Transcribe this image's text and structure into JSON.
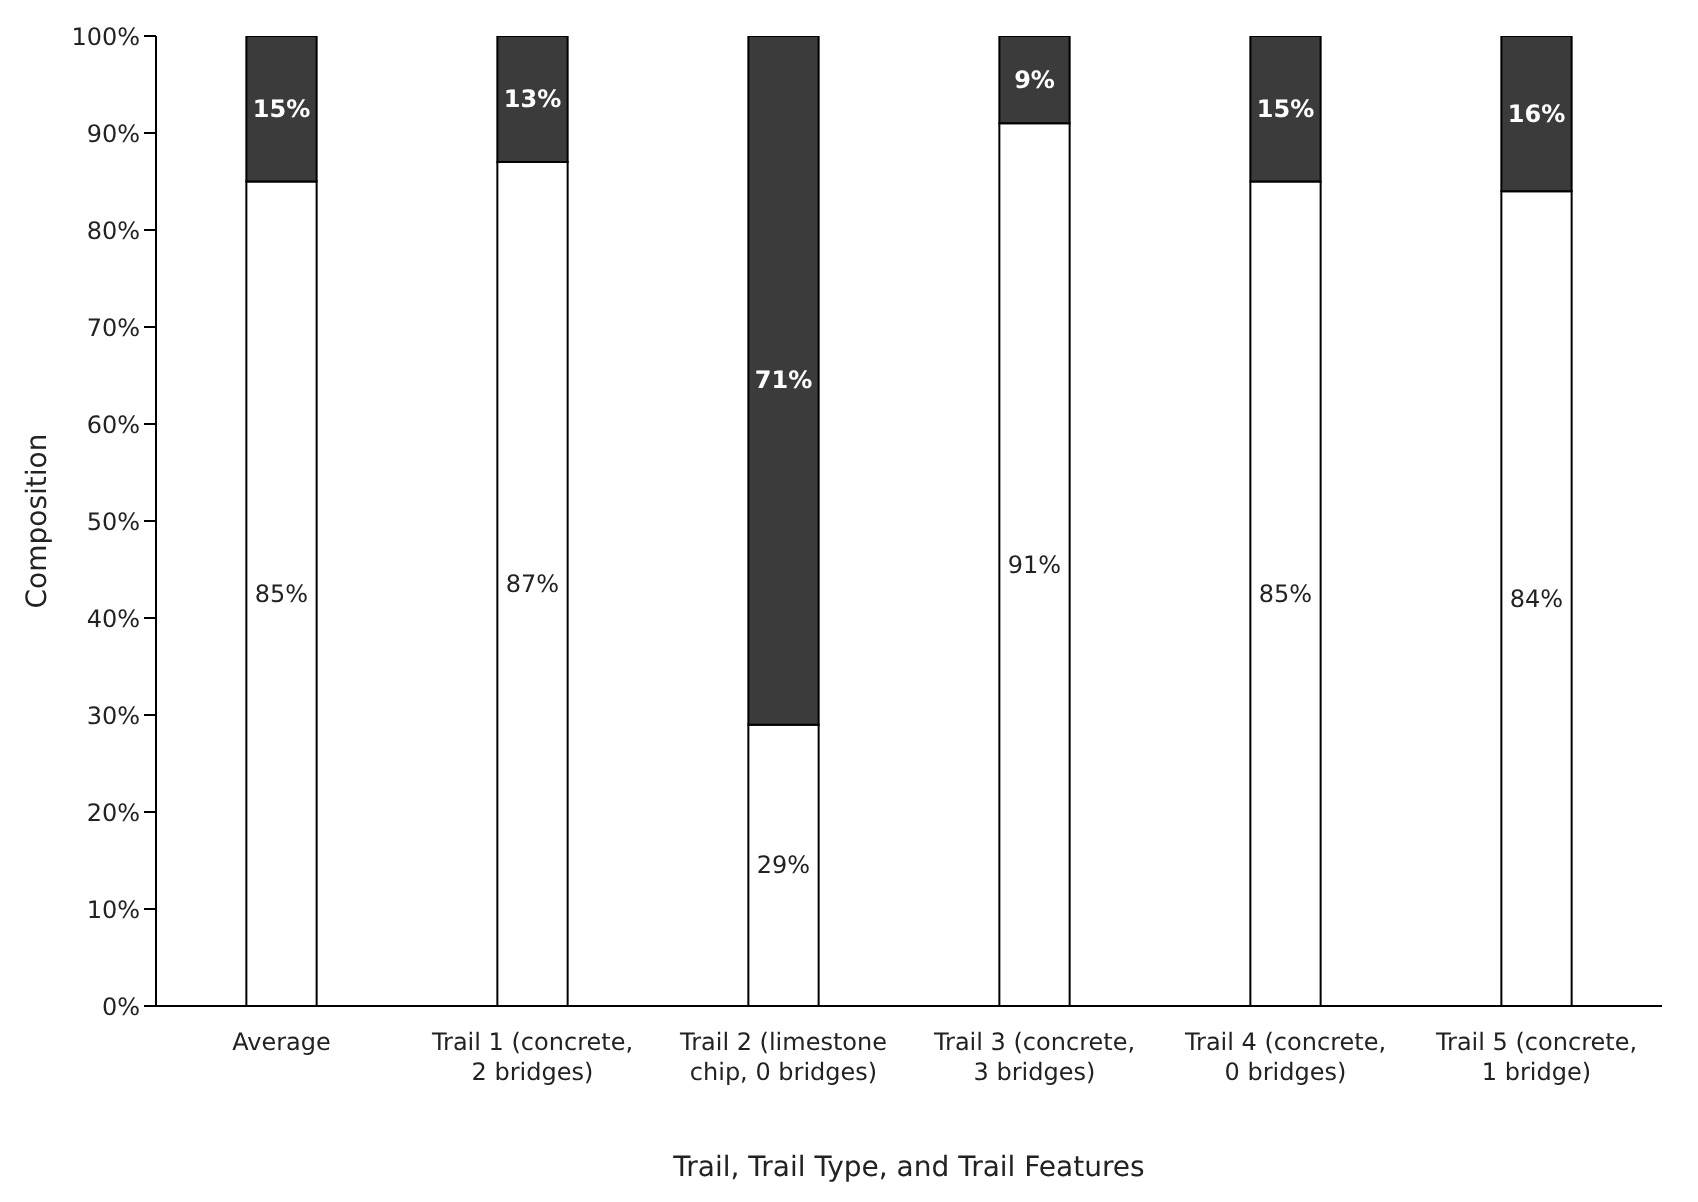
{
  "chart_data": {
    "type": "bar",
    "stacked": true,
    "xlabel": "Trail, Trail Type, and Trail Features",
    "ylabel": "Composition",
    "categories": [
      "Average",
      "Trail 1 (concrete, 2 bridges)",
      "Trail 2 (limestone chip, 0 bridges)",
      "Trail 3 (concrete, 3 bridges)",
      "Trail 4 (concrete, 0 bridges)",
      "Trail 5 (concrete, 1 bridge)"
    ],
    "series": [
      {
        "color": "#ffffff",
        "values": [
          85,
          87,
          29,
          91,
          85,
          84
        ],
        "value_labels": [
          "85%",
          "87%",
          "29%",
          "91%",
          "85%",
          "84%"
        ]
      },
      {
        "color": "#3b3b3b",
        "values": [
          15,
          13,
          71,
          9,
          15,
          16
        ],
        "value_labels": [
          "15%",
          "13%",
          "71%",
          "9%",
          "15%",
          "16%"
        ]
      }
    ],
    "ylim": [
      0,
      100
    ],
    "yticks": [
      {
        "value": 0,
        "label": "0%"
      },
      {
        "value": 10,
        "label": "10%"
      },
      {
        "value": 20,
        "label": "20%"
      },
      {
        "value": 30,
        "label": "30%"
      },
      {
        "value": 40,
        "label": "40%"
      },
      {
        "value": 50,
        "label": "50%"
      },
      {
        "value": 60,
        "label": "60%"
      },
      {
        "value": 70,
        "label": "70%"
      },
      {
        "value": 80,
        "label": "80%"
      },
      {
        "value": 90,
        "label": "90%"
      },
      {
        "value": 100,
        "label": "100%"
      }
    ],
    "grid": false,
    "legend": false
  }
}
